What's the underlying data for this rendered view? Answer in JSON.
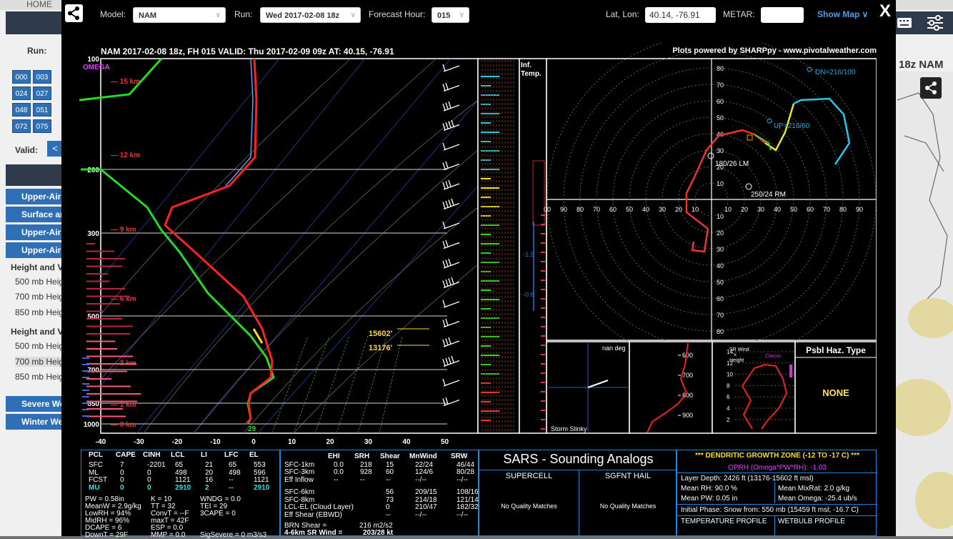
{
  "background": {
    "home": "HOME",
    "run_label": "Run:",
    "hour_buttons": [
      "000",
      "003",
      "024",
      "027",
      "048",
      "051",
      "072",
      "075"
    ],
    "valid_label": "Valid:",
    "prev_button": "<",
    "menus": [
      "Upper-Air",
      "Surface ar",
      "Upper-Air",
      "Upper-Air"
    ],
    "section1": "Height and V",
    "section1_items": [
      "500 mb Heig",
      "700 mb Heig",
      "850 mb Heig"
    ],
    "section2": "Height and V",
    "section2_items": [
      "500 mb Heig",
      "700 mb Heig",
      "850 mb Heig"
    ],
    "menus2": [
      "Severe We",
      "Winter We"
    ],
    "model_title": "18z NAM"
  },
  "toolbar": {
    "model_label": "Model:",
    "model_value": "NAM",
    "run_label": "Run:",
    "run_value": "Wed 2017-02-08 18z",
    "fhour_label": "Forecast Hour:",
    "fhour_value": "015",
    "latlon_label": "Lat, Lon:",
    "latlon_value": "40.14, -76.91",
    "metar_label": "METAR:",
    "metar_value": "",
    "show_map": "Show Map ∨",
    "close": "X"
  },
  "sounding": {
    "header": "NAM 2017-02-08 18z, FH 015   VALID: Thu 2017-02-09 09z   AT: 40.15, -76.91",
    "credit": "Plots powered by SHARPpy - www.pivotalweather.com",
    "omega_label": "OMEGA",
    "inf_temp": [
      "Inf.",
      "Temp."
    ],
    "pressure_levels": [
      "100",
      "200",
      "300",
      "500",
      "700",
      "850",
      "1000"
    ],
    "height_labels": [
      "15 km",
      "12 km",
      "9 km",
      "6 km",
      "3 km",
      "1 km",
      "0 km"
    ],
    "temp_ticks": [
      "-40",
      "-30",
      "-20",
      "-10",
      "0",
      "10",
      "20",
      "30",
      "40",
      "50"
    ],
    "sfc_temp": "29",
    "dgz_top": "15602'",
    "dgz_bot": "13176'",
    "hodo_labels": {
      "dn": "DN=216/100",
      "up": "UP=216/60",
      "lm": "180/26 LM",
      "rm": "250/24 RM"
    },
    "hodo_rings": [
      "10",
      "20",
      "30",
      "40",
      "50",
      "60",
      "70",
      "80"
    ],
    "hodo_xticks": [
      "00",
      "90",
      "80",
      "70",
      "60",
      "50",
      "40",
      "30",
      "20",
      "10",
      "10",
      "20",
      "30",
      "40",
      "50",
      "60",
      "70",
      "80",
      "90"
    ],
    "storm_slinky": "Storm Slinky",
    "nan_deg": "nan deg",
    "theta_levels": [
      "600",
      "700",
      "800",
      "900"
    ],
    "srwind": [
      "SR Wind",
      "v.",
      "Height"
    ],
    "srw_ticks": [
      "14",
      "12",
      "10",
      "8",
      "6",
      "4",
      "2"
    ],
    "classic": "Classic",
    "psbl_haz": "Psbl Haz. Type",
    "haz_value": "NONE"
  },
  "thermo_table": {
    "headers": [
      "PCL",
      "CAPE",
      "CINH",
      "LCL",
      "LI",
      "LFC",
      "EL"
    ],
    "rows": [
      [
        "SFC",
        "7",
        "-2201",
        "65",
        "21",
        "65",
        "553"
      ],
      [
        "ML",
        "0",
        "0",
        "498",
        "20",
        "498",
        "596"
      ],
      [
        "FCST",
        "0",
        "0",
        "1121",
        "16",
        "--",
        "1121"
      ],
      [
        "MU",
        "0",
        "0",
        "2910",
        "2",
        "--",
        "2910"
      ]
    ],
    "misc_col1": [
      "PW = 0.58in",
      "MeanW = 2.9g/kg",
      "LowRH = 94%",
      "MidRH = 96%",
      "DCAPE = 6",
      "DownT = 29F"
    ],
    "misc_col2": [
      "K = 10",
      "TT = 32",
      "ConvT = --F",
      "maxT = 42F",
      "ESP = 0.0",
      "MMP = 0.0"
    ],
    "misc_col3": [
      "WNDG = 0.0",
      "TEI = 29",
      "3CAPE = 0",
      "",
      "",
      "SigSevere = 0 m3/s3"
    ]
  },
  "kin_table": {
    "headers": [
      "EHI",
      "SRH",
      "Shear",
      "MnWind",
      "SRW"
    ],
    "rows": [
      [
        "SFC-1km",
        "0.0",
        "218",
        "15",
        "22/24",
        "46/44"
      ],
      [
        "SFC-3km",
        "0.0",
        "928",
        "60",
        "124/6",
        "80/28"
      ],
      [
        "Eff Inflow",
        "--",
        "--",
        "--",
        "--/--",
        "--/--"
      ],
      [
        "SFC-6km",
        "",
        "",
        "56",
        "209/15",
        "108/16"
      ],
      [
        "SFC-8km",
        "",
        "",
        "73",
        "214/18",
        "121/14"
      ],
      [
        "LCL-EL (Cloud Layer)",
        "",
        "",
        "0",
        "210/47",
        "182/32"
      ],
      [
        "Eff Shear (EBWD)",
        "",
        "",
        "--",
        "--/--",
        "--/--"
      ]
    ],
    "brn": "BRN Shear =",
    "brn_val": "216 m2/s2",
    "sr46": "4-6km SR Wind =",
    "sr46_val": "203/28 kt"
  },
  "sars": {
    "title": "SARS - Sounding Analogs",
    "col1": "SUPERCELL",
    "col2": "SGFNT HAIL",
    "nomatch": "No Quality Matches"
  },
  "dgz": {
    "title": "*** DENDRITIC GROWTH ZONE (-12 TO -17 C) ***",
    "oprh": "OPRH (Omega*PW*RH): -1.03",
    "depth": "Layer Depth: 2426 ft (13176-15602 ft msl)",
    "meanrh": "Mean RH: 90.0 %",
    "mixrat": "Mean MixRat: 2.0 g/kg",
    "meanpw": "Mean PW: 0.05 in",
    "omega": "Mean Omega: -25.4 ub/s",
    "phase": "Initial Phase: Snow from: 550 mb (15459 ft msl; -16.7 C)",
    "temp_profile": "TEMPERATURE PROFILE",
    "wb_profile": "WETBULB PROFILE"
  }
}
